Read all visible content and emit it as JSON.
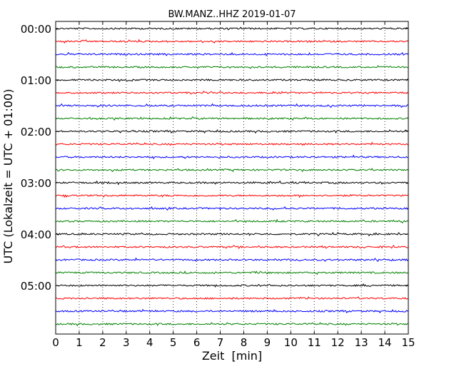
{
  "chart_data": {
    "type": "line",
    "title": "BW.MANZ..HHZ 2019-01-07",
    "xlabel": "Zeit  [min]",
    "ylabel": "UTC (Lokalzeit = UTC + 01:00)",
    "xlim": [
      0,
      15
    ],
    "x_ticks": [
      "0",
      "1",
      "2",
      "3",
      "4",
      "5",
      "6",
      "7",
      "8",
      "9",
      "10",
      "11",
      "12",
      "13",
      "14",
      "15"
    ],
    "y_tick_labels": [
      "00:00",
      "01:00",
      "02:00",
      "03:00",
      "04:00",
      "05:00"
    ],
    "grid": "vertical dotted lines at each minute",
    "trace_colors": [
      "#000000",
      "#ff0000",
      "#0000ff",
      "#008000"
    ],
    "trace_start_times": [
      "00:00",
      "00:15",
      "00:30",
      "00:45",
      "01:00",
      "01:15",
      "01:30",
      "01:45",
      "02:00",
      "02:15",
      "02:30",
      "02:45",
      "03:00",
      "03:15",
      "03:30",
      "03:45",
      "04:00",
      "04:15",
      "04:30",
      "04:45",
      "05:00",
      "05:15",
      "05:30",
      "05:45"
    ],
    "series": [
      {
        "values": "seismic noise trace, low amplitude, repeated for each 15-minute interval"
      }
    ]
  }
}
